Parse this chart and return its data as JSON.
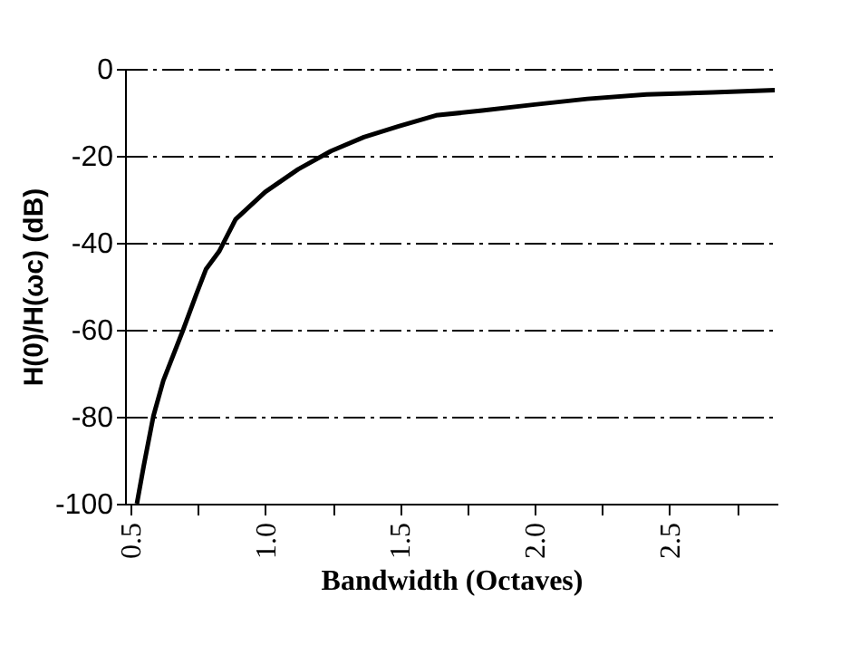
{
  "chart_data": {
    "type": "line",
    "xlabel": "Bandwidth (Octaves)",
    "ylabel": "H(0)/H(ωc)  (dB)",
    "x": [
      0.524,
      0.549,
      0.585,
      0.622,
      0.695,
      0.744,
      0.78,
      0.829,
      0.89,
      1.0,
      1.122,
      1.244,
      1.366,
      1.495,
      1.634,
      1.805,
      2.0,
      2.195,
      2.415,
      2.659,
      2.89
    ],
    "series": [
      {
        "color": "#000000",
        "values": [
          -100,
          -91.4,
          -79.9,
          -71.7,
          -60.1,
          -51.9,
          -46.1,
          -42.0,
          -34.6,
          -28.3,
          -23.1,
          -18.9,
          -15.7,
          -13.2,
          -10.7,
          -9.6,
          -8.2,
          -6.9,
          -5.9,
          -5.4,
          -4.9
        ]
      }
    ],
    "xlim": [
      0.48,
      2.9
    ],
    "xticks": [
      0.5,
      {
        "value": 0.75,
        "label": null
      },
      {
        "value": 1,
        "label": "1.0"
      },
      {
        "value": 1.25,
        "label": null
      },
      1.5,
      {
        "value": 1.75,
        "label": null
      },
      {
        "value": 2,
        "label": "2.0"
      },
      {
        "value": 2.25,
        "label": null
      },
      2.5,
      {
        "value": 2.75,
        "label": null
      }
    ],
    "ylim": [
      -100,
      0
    ],
    "yticks": [
      -100,
      -80,
      -60,
      -40,
      -20,
      0
    ],
    "grid": "y",
    "line_style": "solid",
    "marker": "none"
  }
}
